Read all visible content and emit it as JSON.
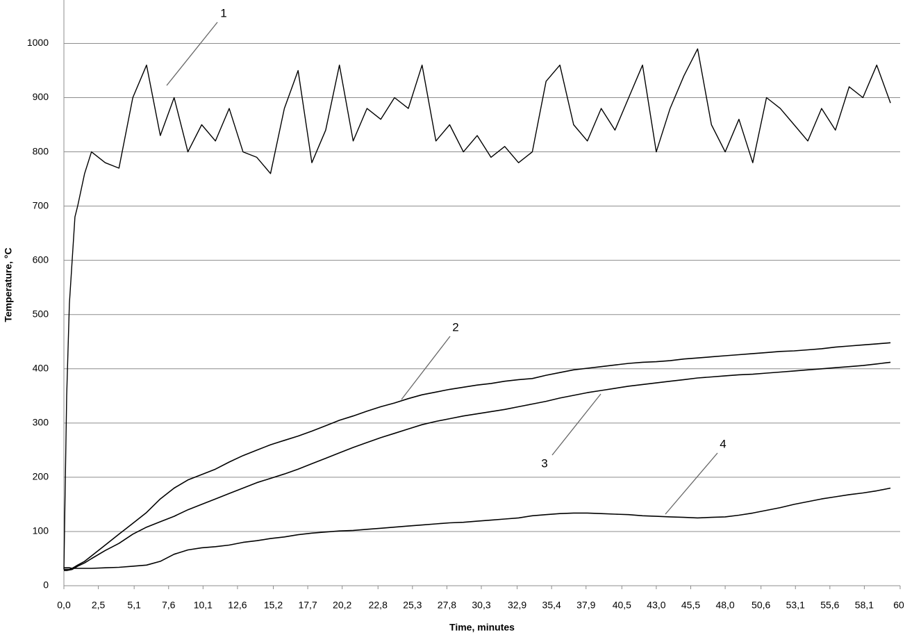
{
  "chart_data": {
    "type": "line",
    "x_label": "Time, minutes",
    "y_label": "Temperature, °C",
    "xlim": [
      0,
      60.7
    ],
    "ylim": [
      0,
      1080
    ],
    "xticks": [
      {
        "value": 0,
        "label": "0,0"
      },
      {
        "value": 2.5,
        "label": "2,5"
      },
      {
        "value": 5.1,
        "label": "5,1"
      },
      {
        "value": 7.6,
        "label": "7,6"
      },
      {
        "value": 10.1,
        "label": "10,1"
      },
      {
        "value": 12.6,
        "label": "12,6"
      },
      {
        "value": 15.2,
        "label": "15,2"
      },
      {
        "value": 17.7,
        "label": "17,7"
      },
      {
        "value": 20.2,
        "label": "20,2"
      },
      {
        "value": 22.8,
        "label": "22,8"
      },
      {
        "value": 25.3,
        "label": "25,3"
      },
      {
        "value": 27.8,
        "label": "27,8"
      },
      {
        "value": 30.3,
        "label": "30,3"
      },
      {
        "value": 32.9,
        "label": "32,9"
      },
      {
        "value": 35.4,
        "label": "35,4"
      },
      {
        "value": 37.9,
        "label": "37,9"
      },
      {
        "value": 40.5,
        "label": "40,5"
      },
      {
        "value": 43.0,
        "label": "43,0"
      },
      {
        "value": 45.5,
        "label": "45,5"
      },
      {
        "value": 48.0,
        "label": "48,0"
      },
      {
        "value": 50.6,
        "label": "50,6"
      },
      {
        "value": 53.1,
        "label": "53,1"
      },
      {
        "value": 55.6,
        "label": "55,6"
      },
      {
        "value": 58.1,
        "label": "58,1"
      },
      {
        "value": 60.7,
        "label": "60,"
      }
    ],
    "yticks": [
      0,
      100,
      200,
      300,
      400,
      500,
      600,
      700,
      800,
      900,
      1000
    ],
    "grid": true,
    "x": [
      0,
      0.2,
      0.4,
      0.6,
      0.8,
      1,
      1.5,
      2,
      3,
      4,
      5,
      6,
      7,
      8,
      9,
      10,
      11,
      12,
      13,
      14,
      15,
      16,
      17,
      18,
      19,
      20,
      21,
      22,
      23,
      24,
      25,
      26,
      27,
      28,
      29,
      30,
      31,
      32,
      33,
      34,
      35,
      36,
      37,
      38,
      39,
      40,
      41,
      42,
      43,
      44,
      45,
      46,
      47,
      48,
      49,
      50,
      51,
      52,
      53,
      54,
      55,
      56,
      57,
      58,
      59,
      60
    ],
    "series": [
      {
        "name": "1",
        "color": "#000000",
        "values": [
          30,
          350,
          520,
          600,
          680,
          700,
          760,
          800,
          780,
          770,
          900,
          960,
          830,
          900,
          800,
          850,
          820,
          880,
          800,
          790,
          760,
          880,
          950,
          780,
          840,
          960,
          820,
          880,
          860,
          900,
          880,
          960,
          820,
          850,
          800,
          830,
          790,
          810,
          780,
          800,
          930,
          960,
          850,
          820,
          880,
          840,
          900,
          960,
          800,
          880,
          940,
          990,
          850,
          800,
          860,
          780,
          900,
          880,
          850,
          820,
          880,
          840,
          920,
          900,
          960,
          890
        ]
      },
      {
        "name": "2",
        "color": "#000000",
        "values": [
          30,
          30,
          30,
          32,
          35,
          38,
          45,
          55,
          75,
          95,
          115,
          135,
          160,
          180,
          195,
          205,
          215,
          228,
          240,
          250,
          260,
          268,
          276,
          285,
          295,
          305,
          313,
          322,
          330,
          337,
          345,
          352,
          357,
          362,
          366,
          370,
          373,
          377,
          380,
          382,
          388,
          393,
          398,
          401,
          404,
          407,
          410,
          412,
          413,
          415,
          418,
          420,
          422,
          424,
          426,
          428,
          430,
          432,
          433,
          435,
          437,
          440,
          442,
          444,
          446,
          448
        ]
      },
      {
        "name": "3",
        "color": "#000000",
        "values": [
          28,
          28,
          29,
          30,
          33,
          36,
          42,
          50,
          65,
          78,
          95,
          108,
          118,
          128,
          140,
          150,
          160,
          170,
          180,
          190,
          198,
          206,
          215,
          225,
          235,
          245,
          255,
          264,
          273,
          281,
          289,
          297,
          303,
          308,
          313,
          317,
          321,
          325,
          330,
          335,
          340,
          346,
          351,
          356,
          360,
          364,
          368,
          371,
          374,
          377,
          380,
          383,
          385,
          387,
          389,
          390,
          392,
          394,
          396,
          398,
          400,
          402,
          404,
          406,
          409,
          412
        ]
      },
      {
        "name": "4",
        "color": "#000000",
        "values": [
          33,
          33,
          33,
          32,
          32,
          32,
          32,
          32,
          33,
          34,
          36,
          38,
          45,
          58,
          66,
          70,
          72,
          75,
          80,
          83,
          87,
          90,
          94,
          97,
          99,
          101,
          102,
          104,
          106,
          108,
          110,
          112,
          114,
          116,
          117,
          119,
          121,
          123,
          125,
          129,
          131,
          133,
          134,
          134,
          133,
          132,
          131,
          129,
          128,
          127,
          126,
          125,
          126,
          127,
          130,
          134,
          139,
          144,
          150,
          155,
          160,
          164,
          168,
          171,
          175,
          180
        ]
      }
    ]
  }
}
